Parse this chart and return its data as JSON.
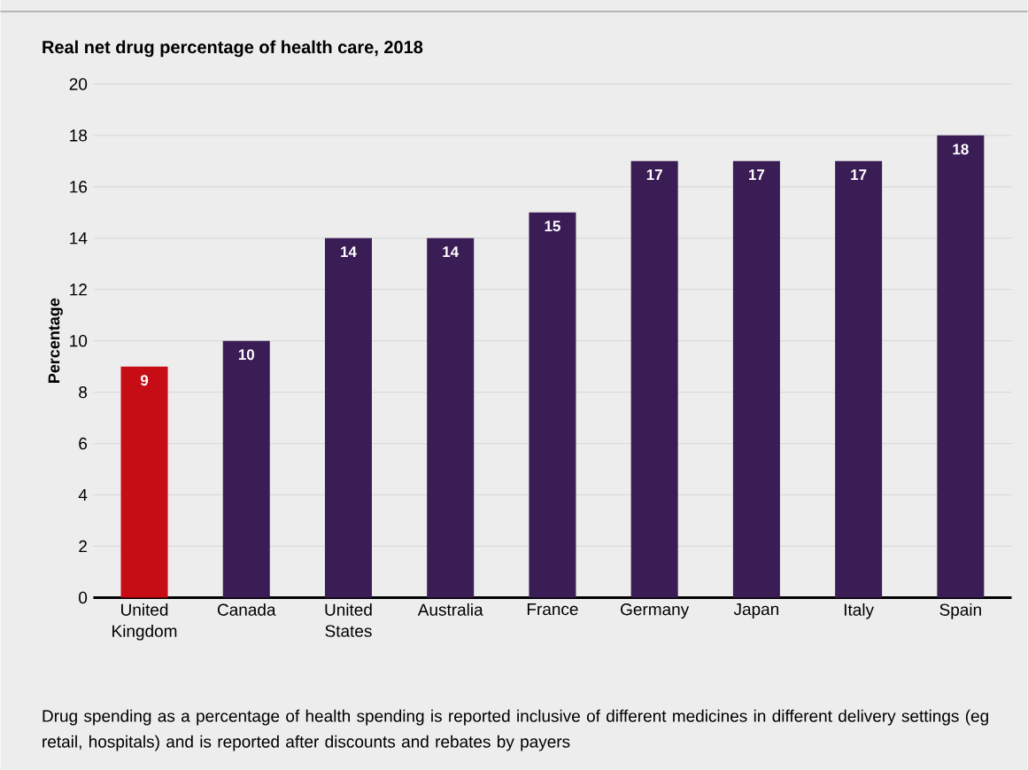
{
  "chart_data": {
    "type": "bar",
    "title": "Real net drug percentage of health care, 2018",
    "ylabel": "Percentage",
    "categories": [
      "United Kingdom",
      "Canada",
      "United States",
      "Australia",
      "France",
      "Germany",
      "Japan",
      "Italy",
      "Spain"
    ],
    "values": [
      9,
      10,
      14,
      14,
      15,
      17,
      17,
      17,
      18
    ],
    "colors": [
      "#c60c15",
      "#3b1d56",
      "#3b1d56",
      "#3b1d56",
      "#3b1d56",
      "#3b1d56",
      "#3b1d56",
      "#3b1d56",
      "#3b1d56"
    ],
    "ylim": [
      0,
      20
    ],
    "yticks": [
      0,
      2,
      4,
      6,
      8,
      10,
      12,
      14,
      16,
      18,
      20
    ],
    "grid": "y",
    "data_labels": true,
    "annotations": [
      "Drug spending as a percentage of health spending is reported inclusive of different medicines in different delivery settings (eg retail, hospitals) and is reported after discounts and rebates by payers"
    ]
  }
}
